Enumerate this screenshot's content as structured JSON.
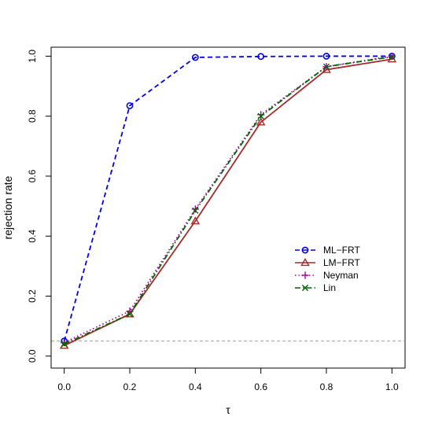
{
  "chart_data": {
    "type": "line",
    "xlabel": "τ",
    "ylabel": "rejection rate",
    "xlim": [
      -0.04,
      1.04
    ],
    "ylim": [
      -0.04,
      1.03
    ],
    "x_ticks": [
      "0.0",
      "0.2",
      "0.4",
      "0.6",
      "0.8",
      "1.0"
    ],
    "y_ticks": [
      "0.0",
      "0.2",
      "0.4",
      "0.6",
      "0.8",
      "1.0"
    ],
    "grid": false,
    "legend_position": "right",
    "reference_line": {
      "y": 0.05,
      "color": "#a0a0a0",
      "style": "dashed"
    },
    "x": [
      0.0,
      0.2,
      0.4,
      0.6,
      0.8,
      1.0
    ],
    "series": [
      {
        "name": "ML−FRT",
        "values": [
          0.05,
          0.835,
          0.996,
          0.999,
          1.0,
          1.0
        ],
        "color": "#0000ee",
        "line_style": "dashed",
        "marker": "circle"
      },
      {
        "name": "LM−FRT",
        "values": [
          0.035,
          0.14,
          0.45,
          0.78,
          0.955,
          0.99
        ],
        "color": "#a52a2a",
        "line_style": "solid",
        "marker": "triangle"
      },
      {
        "name": "Neyman",
        "values": [
          0.045,
          0.15,
          0.49,
          0.805,
          0.965,
          1.0
        ],
        "color": "#b000b0",
        "line_style": "dotted",
        "marker": "plus"
      },
      {
        "name": "Lin",
        "values": [
          0.04,
          0.14,
          0.485,
          0.8,
          0.965,
          0.998
        ],
        "color": "#006400",
        "line_style": "dashdot",
        "marker": "x"
      }
    ]
  }
}
